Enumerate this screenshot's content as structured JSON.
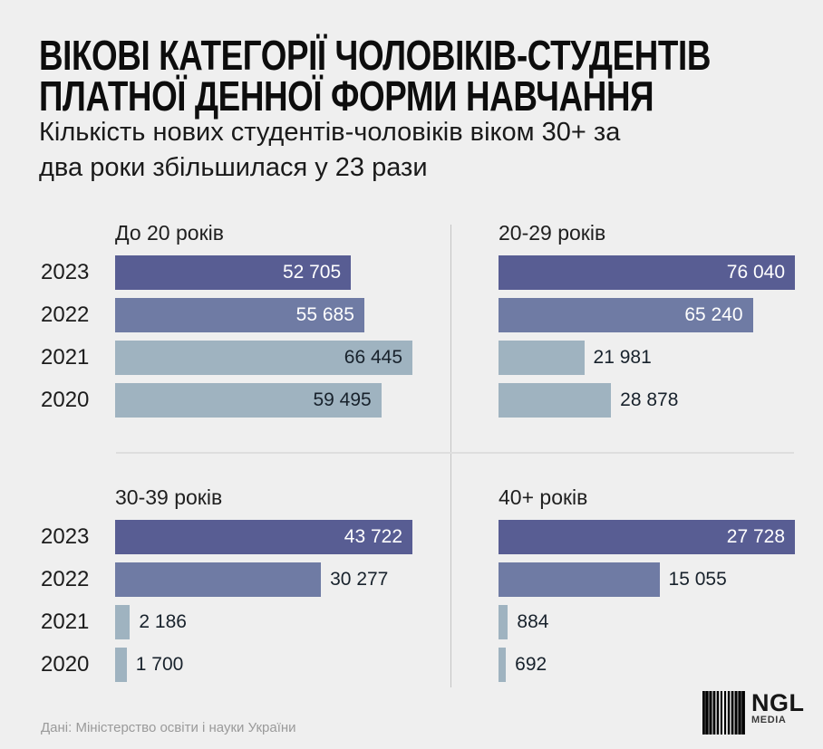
{
  "header": {
    "title_line1": "ВІКОВІ КАТЕГОРІЇ ЧОЛОВІКІВ-СТУДЕНТІВ",
    "title_line2": "ПЛАТНОЇ ДЕННОЇ ФОРМИ НАВЧАННЯ",
    "subtitle_line1": "Кількість нових студентів-чоловіків віком 30+ за",
    "subtitle_line2": "два роки збільшилася у 23 рази"
  },
  "footer": {
    "source": "Дані: Міністерство освіти і науки України",
    "logo_text": "NGL",
    "logo_subtext": "MEDIA"
  },
  "colors": {
    "background": "#efefef",
    "bar_2023": "#585d93",
    "bar_2022": "#6f7ba4",
    "bar_light": "#9fb3c0",
    "value_text_dark": "#18222c",
    "value_text_light": "#ffffff",
    "divider_vertical": "#c3c3c3",
    "divider_horizontal": "#dedede"
  },
  "chart_data": [
    {
      "type": "bar",
      "orientation": "horizontal",
      "title": "До 20 років",
      "categories": [
        "2023",
        "2022",
        "2021",
        "2020"
      ],
      "values": [
        52705,
        55685,
        66445,
        59495
      ],
      "value_labels": [
        "52 705",
        "55 685",
        "66 445",
        "59 495"
      ],
      "bar_colors": [
        "#585d93",
        "#6f7ba4",
        "#9fb3c0",
        "#9fb3c0"
      ],
      "label_inside": [
        true,
        true,
        true,
        true
      ],
      "show_year_labels": true,
      "xlim": [
        0,
        66445
      ],
      "grid": false,
      "legend": "none"
    },
    {
      "type": "bar",
      "orientation": "horizontal",
      "title": "20-29 років",
      "categories": [
        "2023",
        "2022",
        "2021",
        "2020"
      ],
      "values": [
        76040,
        65240,
        21981,
        28878
      ],
      "value_labels": [
        "76 040",
        "65 240",
        "21 981",
        "28 878"
      ],
      "bar_colors": [
        "#585d93",
        "#6f7ba4",
        "#9fb3c0",
        "#9fb3c0"
      ],
      "label_inside": [
        true,
        true,
        false,
        false
      ],
      "show_year_labels": false,
      "xlim": [
        0,
        76040
      ],
      "grid": false,
      "legend": "none"
    },
    {
      "type": "bar",
      "orientation": "horizontal",
      "title": "30-39 років",
      "categories": [
        "2023",
        "2022",
        "2021",
        "2020"
      ],
      "values": [
        43722,
        30277,
        2186,
        1700
      ],
      "value_labels": [
        "43 722",
        "30 277",
        "2 186",
        "1 700"
      ],
      "bar_colors": [
        "#585d93",
        "#6f7ba4",
        "#9fb3c0",
        "#9fb3c0"
      ],
      "label_inside": [
        true,
        false,
        false,
        false
      ],
      "show_year_labels": true,
      "xlim": [
        0,
        43722
      ],
      "grid": false,
      "legend": "none"
    },
    {
      "type": "bar",
      "orientation": "horizontal",
      "title": "40+ років",
      "categories": [
        "2023",
        "2022",
        "2021",
        "2020"
      ],
      "values": [
        27728,
        15055,
        884,
        692
      ],
      "value_labels": [
        "27 728",
        "15 055",
        "884",
        "692"
      ],
      "bar_colors": [
        "#585d93",
        "#6f7ba4",
        "#9fb3c0",
        "#9fb3c0"
      ],
      "label_inside": [
        true,
        false,
        false,
        false
      ],
      "show_year_labels": false,
      "xlim": [
        0,
        27728
      ],
      "grid": false,
      "legend": "none"
    }
  ]
}
